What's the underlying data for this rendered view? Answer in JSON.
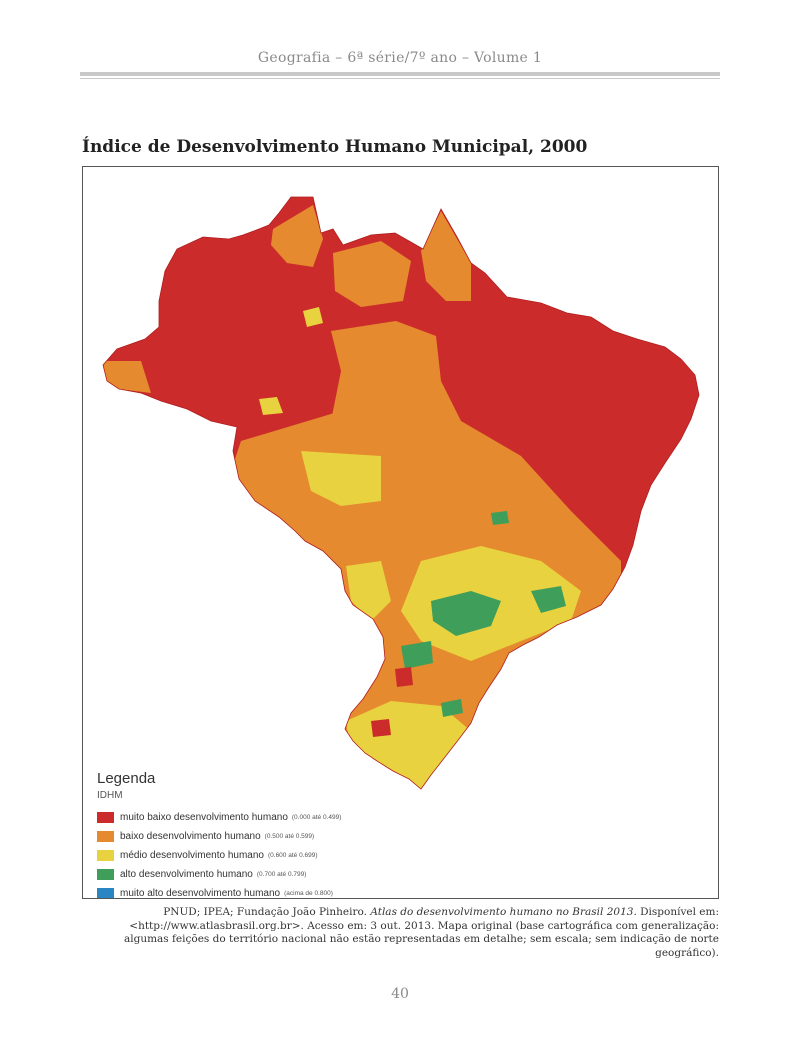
{
  "header": {
    "title": "Geografia – 6ª série/7º ano – Volume 1"
  },
  "map": {
    "title": "Índice de Desenvolvimento Humano Municipal, 2000",
    "colors": {
      "muito_baixo": "#cc2b2b",
      "baixo": "#e58a2e",
      "medio": "#e9d23f",
      "alto": "#3f9f5a",
      "muito_alto": "#2a86c3"
    },
    "legend": {
      "title": "Legenda",
      "subtitle": "IDHM",
      "items": [
        {
          "label": "muito baixo desenvolvimento humano",
          "range": "(0.000 até 0.499)",
          "color": "#cc2b2b"
        },
        {
          "label": "baixo desenvolvimento humano",
          "range": "(0.500 até 0.599)",
          "color": "#e58a2e"
        },
        {
          "label": "médio desenvolvimento humano",
          "range": "(0.600 até 0.699)",
          "color": "#e9d23f"
        },
        {
          "label": "alto desenvolvimento humano",
          "range": "(0.700 até 0.799)",
          "color": "#3f9f5a"
        },
        {
          "label": "muito alto desenvolvimento humano",
          "range": "(acima de 0.800)",
          "color": "#2a86c3"
        }
      ]
    }
  },
  "source": {
    "prefix": "PNUD; IPEA; Fundação João Pinheiro. ",
    "work": "Atlas do desenvolvimento humano no Brasil 2013",
    "suffix": ". Disponível em: <http://www.atlasbrasil.org.br>. Acesso em: 3 out. 2013. Mapa original (base cartográfica com generalização: algumas feições do território nacional não estão representadas em detalhe; sem escala; sem indicação de norte geográfico)."
  },
  "page": {
    "number": "40"
  }
}
